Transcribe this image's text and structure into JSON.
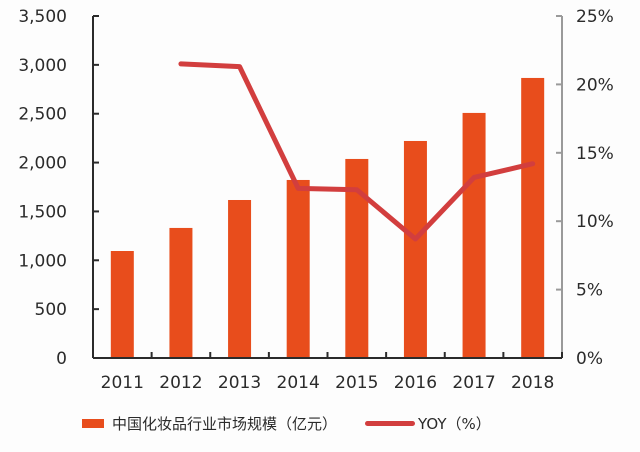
{
  "colors": {
    "bar": "#E84D1C",
    "line": "#D23E3E",
    "left_axis": "#2b2b2b",
    "right_axis": "#9a9a9a",
    "text": "#2b2b2b"
  },
  "legend": {
    "bar_label": "中国化妆品行业市场规模（亿元）",
    "line_label": "YOY（%）"
  },
  "chart_data": {
    "type": "bar",
    "title": "",
    "xlabel": "",
    "ylabel": "",
    "categories": [
      "2011",
      "2012",
      "2013",
      "2014",
      "2015",
      "2016",
      "2017",
      "2018"
    ],
    "series": [
      {
        "name": "中国化妆品行业市场规模（亿元）",
        "type": "bar",
        "axis": "left",
        "values": [
          1095,
          1331,
          1617,
          1822,
          2037,
          2221,
          2508,
          2866
        ]
      },
      {
        "name": "YOY（%）",
        "type": "line",
        "axis": "right",
        "values": [
          null,
          21.5,
          21.3,
          12.4,
          12.3,
          8.7,
          13.2,
          14.2
        ]
      }
    ],
    "ylim": [
      0,
      3500
    ],
    "y_ticks": [
      "0",
      "500",
      "1,000",
      "1,500",
      "2,000",
      "2,500",
      "3,000",
      "3,500"
    ],
    "y2lim": [
      0,
      25
    ],
    "y2_ticks": [
      "0%",
      "5%",
      "10%",
      "15%",
      "20%",
      "25%"
    ],
    "grid": false,
    "legend_position": "bottom"
  }
}
